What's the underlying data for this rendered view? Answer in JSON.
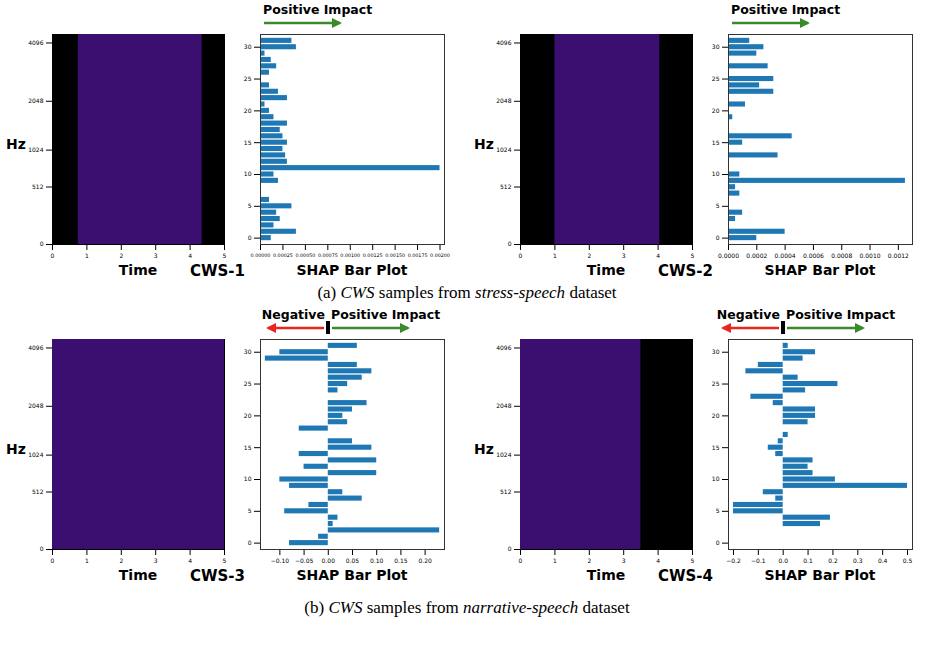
{
  "chart_data": [
    {
      "type": "spectrogram",
      "title": "CWS-1",
      "xlabel": "Time",
      "ylabel": "Hz",
      "xlim": [
        0,
        5
      ],
      "xticks": [
        0,
        1,
        2,
        3,
        4,
        5
      ],
      "ylim": [
        0,
        4500
      ],
      "yticks": [
        0,
        512,
        1024,
        2048,
        4096
      ],
      "signal_span": [
        0.75,
        4.35
      ],
      "color": "#3b0f6f"
    },
    {
      "type": "bar",
      "orientation": "horizontal",
      "title": "SHAP Bar Plot",
      "color": "#1f77b4",
      "categories": [
        0,
        1,
        2,
        3,
        4,
        5,
        6,
        7,
        8,
        9,
        10,
        11,
        12,
        13,
        14,
        15,
        16,
        17,
        18,
        19,
        20,
        21,
        22,
        23,
        24,
        25,
        26,
        27,
        28,
        29,
        30,
        31
      ],
      "values": [
        0.00012,
        0.0004,
        0.00015,
        0.00022,
        0.00018,
        0.00035,
        0.0001,
        0,
        0,
        0.0002,
        0.00015,
        0.002,
        0.0003,
        0.00028,
        0.00025,
        0.0003,
        0.00025,
        0.00022,
        0.0003,
        0.00015,
        0.0001,
        5e-05,
        0.0003,
        0.0002,
        0.0001,
        0,
        0.0001,
        0.00018,
        0.00012,
        5e-05,
        0.0004,
        0.00035
      ],
      "xlim": [
        0,
        0.00205
      ],
      "xticks": [
        {
          "value": 0,
          "label": "0.00000"
        },
        0.00025,
        {
          "value": 0.0005,
          "label": "0.00050"
        },
        0.00075,
        {
          "value": 0.001,
          "label": "0.00100"
        },
        0.00125,
        {
          "value": 0.0015,
          "label": "0.00150"
        },
        0.00175,
        {
          "value": 0.002,
          "label": "0.00200"
        }
      ],
      "ylim": [
        -1,
        32
      ],
      "yticks": [
        0,
        5,
        10,
        15,
        20,
        25,
        30
      ],
      "annotations": [
        {
          "text": "Positive Impact",
          "color": "#3a8a2a",
          "side": "positive"
        }
      ]
    },
    {
      "type": "spectrogram",
      "title": "CWS-2",
      "xlabel": "Time",
      "ylabel": "Hz",
      "xlim": [
        0,
        5
      ],
      "xticks": [
        0,
        1,
        2,
        3,
        4,
        5
      ],
      "ylim": [
        0,
        4500
      ],
      "yticks": [
        0,
        512,
        1024,
        2048,
        4096
      ],
      "signal_span": [
        1.0,
        4.05
      ],
      "color": "#3b0f6f"
    },
    {
      "type": "bar",
      "orientation": "horizontal",
      "title": "SHAP Bar Plot",
      "color": "#1f77b4",
      "categories": [
        0,
        1,
        2,
        3,
        4,
        5,
        6,
        7,
        8,
        9,
        10,
        11,
        12,
        13,
        14,
        15,
        16,
        17,
        18,
        19,
        20,
        21,
        22,
        23,
        24,
        25,
        26,
        27,
        28,
        29,
        30,
        31
      ],
      "values": [
        0.0002,
        0.0004,
        0,
        5e-05,
        0.0001,
        0,
        0,
        8e-05,
        5e-05,
        0.00125,
        8e-05,
        0,
        0,
        0.00035,
        0,
        0.0001,
        0.00045,
        0,
        0,
        3e-05,
        0,
        0.00012,
        0,
        0.00032,
        0.00022,
        0.00032,
        0,
        0.00028,
        0,
        0.0002,
        0.00025,
        0.00015
      ],
      "xlim": [
        0,
        0.0013
      ],
      "xticks": [
        {
          "value": 0,
          "label": "0.0000"
        },
        0.0002,
        0.0004,
        0.0006,
        0.0008,
        {
          "value": 0.001,
          "label": "0.0010"
        },
        0.0012
      ],
      "ylim": [
        -1,
        32
      ],
      "yticks": [
        0,
        5,
        10,
        15,
        20,
        25,
        30
      ],
      "annotations": [
        {
          "text": "Positive Impact",
          "color": "#3a8a2a",
          "side": "positive"
        }
      ]
    },
    {
      "type": "spectrogram",
      "title": "CWS-3",
      "xlabel": "Time",
      "ylabel": "Hz",
      "xlim": [
        0,
        5
      ],
      "xticks": [
        0,
        1,
        2,
        3,
        4,
        5
      ],
      "ylim": [
        0,
        4500
      ],
      "yticks": [
        0,
        512,
        1024,
        2048,
        4096
      ],
      "signal_span": [
        0,
        5
      ],
      "color": "#3b0f6f"
    },
    {
      "type": "bar",
      "orientation": "horizontal",
      "title": "SHAP Bar Plot",
      "color": "#1f77b4",
      "categories": [
        0,
        1,
        2,
        3,
        4,
        5,
        6,
        7,
        8,
        9,
        10,
        11,
        12,
        13,
        14,
        15,
        16,
        17,
        18,
        19,
        20,
        21,
        22,
        23,
        24,
        25,
        26,
        27,
        28,
        29,
        30,
        31
      ],
      "values": [
        -0.08,
        -0.02,
        0.23,
        0.01,
        0.02,
        -0.09,
        -0.04,
        0.07,
        0.03,
        -0.08,
        -0.1,
        0.1,
        -0.05,
        0.1,
        -0.06,
        0.09,
        0.05,
        0,
        -0.06,
        0.04,
        0.03,
        0.05,
        0.08,
        0,
        0.02,
        0.04,
        0.07,
        0.09,
        0.06,
        -0.13,
        -0.1,
        0.06
      ],
      "xlim": [
        -0.14,
        0.24
      ],
      "xticks": [
        {
          "value": -0.1,
          "label": "−0.10"
        },
        {
          "value": -0.05,
          "label": "−0.05"
        },
        {
          "value": 0,
          "label": "0.00"
        },
        0.05,
        {
          "value": 0.1,
          "label": "0.10"
        },
        0.15,
        {
          "value": 0.2,
          "label": "0.20"
        }
      ],
      "ylim": [
        -1,
        32
      ],
      "yticks": [
        0,
        5,
        10,
        15,
        20,
        25,
        30
      ],
      "annotations": [
        {
          "text": "Negative",
          "color": "#e8251f",
          "side": "negative"
        },
        {
          "text": "Positive Impact",
          "color": "#3a8a2a",
          "side": "positive"
        }
      ]
    },
    {
      "type": "spectrogram",
      "title": "CWS-4",
      "xlabel": "Time",
      "ylabel": "Hz",
      "xlim": [
        0,
        5
      ],
      "xticks": [
        0,
        1,
        2,
        3,
        4,
        5
      ],
      "ylim": [
        0,
        4500
      ],
      "yticks": [
        0,
        512,
        1024,
        2048,
        4096
      ],
      "signal_span": [
        0,
        3.5
      ],
      "color": "#3b0f6f"
    },
    {
      "type": "bar",
      "orientation": "horizontal",
      "title": "SHAP Bar Plot",
      "color": "#1f77b4",
      "categories": [
        0,
        1,
        2,
        3,
        4,
        5,
        6,
        7,
        8,
        9,
        10,
        11,
        12,
        13,
        14,
        15,
        16,
        17,
        18,
        19,
        20,
        21,
        22,
        23,
        24,
        25,
        26,
        27,
        28,
        29,
        30,
        31
      ],
      "values": [
        0,
        0,
        0,
        0.15,
        0.19,
        -0.2,
        -0.2,
        -0.03,
        -0.08,
        0.5,
        0.21,
        0.12,
        0.1,
        0.12,
        -0.03,
        -0.06,
        -0.02,
        0.02,
        0,
        0.1,
        0.13,
        0.13,
        -0.04,
        -0.13,
        0.09,
        0.22,
        0.06,
        -0.15,
        -0.1,
        0.08,
        0.13,
        0.02
      ],
      "xlim": [
        -0.22,
        0.52
      ],
      "xticks": [
        {
          "value": -0.2,
          "label": "−0.2"
        },
        {
          "value": -0.1,
          "label": "−0.1"
        },
        {
          "value": 0,
          "label": "0.0"
        },
        0.1,
        0.2,
        0.3,
        0.4,
        0.5
      ],
      "ylim": [
        -1,
        32
      ],
      "yticks": [
        0,
        5,
        10,
        15,
        20,
        25,
        30
      ],
      "annotations": [
        {
          "text": "Negative",
          "color": "#e8251f",
          "side": "negative"
        },
        {
          "text": "Positive Impact",
          "color": "#3a8a2a",
          "side": "positive"
        }
      ]
    }
  ],
  "captions": [
    [
      {
        "text": "(a) "
      },
      {
        "text": "CWS",
        "italic": true
      },
      {
        "text": " samples from "
      },
      {
        "text": "stress-speech",
        "italic": true
      },
      {
        "text": " dataset"
      }
    ],
    [
      {
        "text": "(b) "
      },
      {
        "text": "CWS",
        "italic": true
      },
      {
        "text": " samples from "
      },
      {
        "text": "narrative-speech",
        "italic": true
      },
      {
        "text": " dataset"
      }
    ]
  ]
}
